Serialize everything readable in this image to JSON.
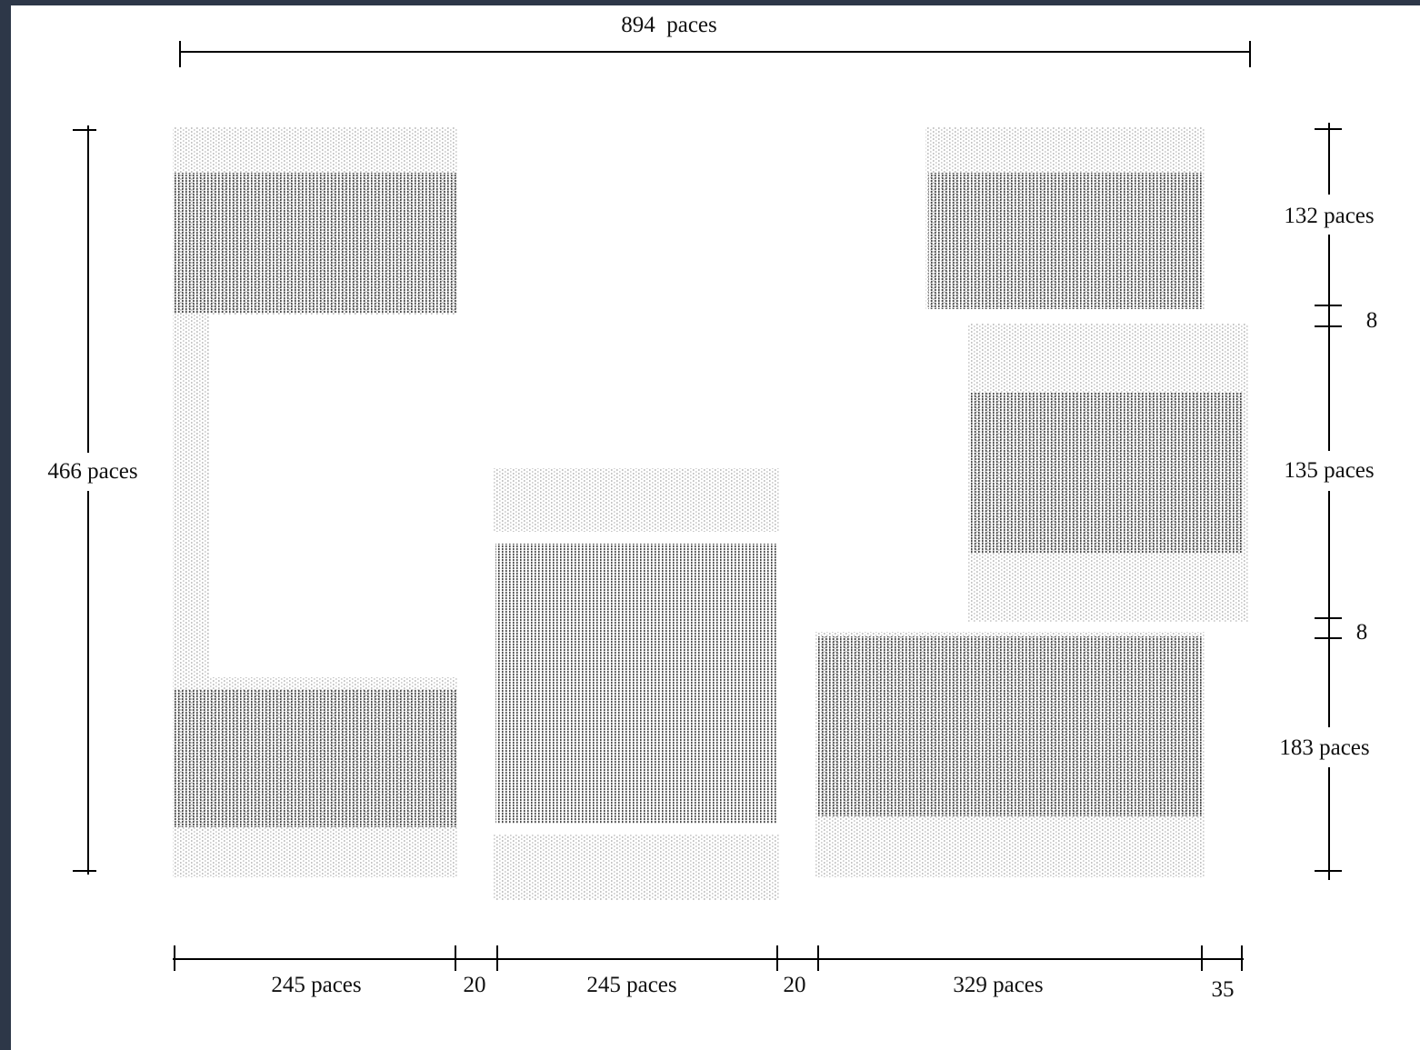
{
  "colors": {
    "frame": "#2d3748",
    "background": "#ffffff",
    "hatch_dark": "#4a4a4a",
    "hatch_light": "#c4c4c4",
    "dimension_line": "#000000"
  },
  "dimensions": {
    "total_width": "894  paces",
    "total_height": "466 paces",
    "right_top": "132 paces",
    "right_gap_1": "8",
    "right_middle": "135 paces",
    "right_gap_2": "8",
    "right_bottom": "183 paces",
    "bottom_block_1": "245 paces",
    "bottom_gap_1": "20",
    "bottom_block_2": "245 paces",
    "bottom_gap_2": "20",
    "bottom_block_3": "329 paces",
    "bottom_end": "35"
  },
  "blocks": [
    {
      "name": "left-top",
      "density": "dark"
    },
    {
      "name": "left-connector",
      "density": "light"
    },
    {
      "name": "left-bottom",
      "density": "dark"
    },
    {
      "name": "center",
      "density": "dark"
    },
    {
      "name": "right-top",
      "density": "dark"
    },
    {
      "name": "right-middle",
      "density": "dark"
    },
    {
      "name": "right-bottom",
      "density": "dark"
    }
  ]
}
